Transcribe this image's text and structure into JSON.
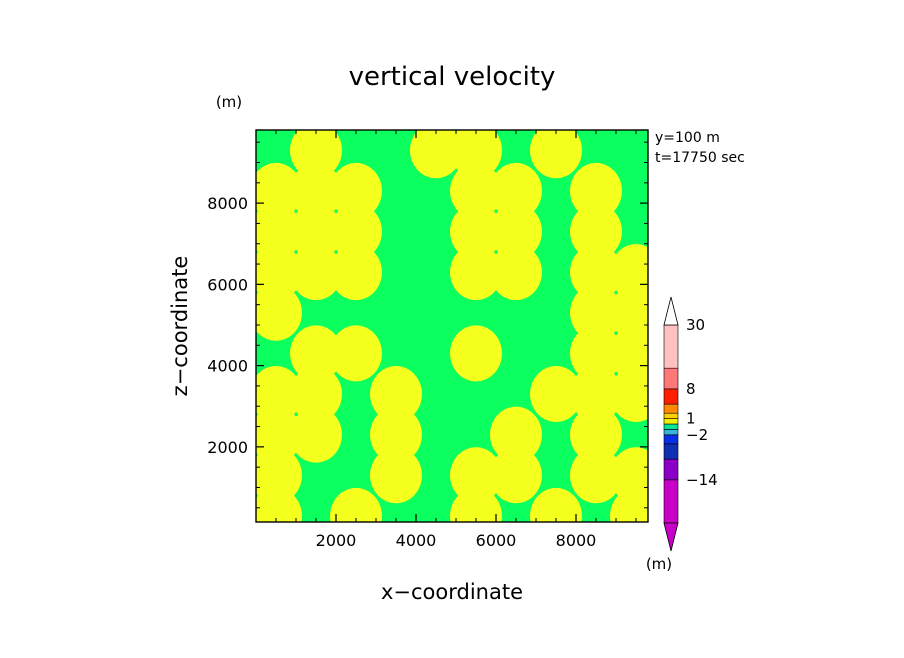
{
  "chart_data": {
    "type": "heatmap",
    "title": "vertical velocity",
    "xlabel": "x−coordinate",
    "ylabel": "z−coordinate",
    "y_unit": "(m)",
    "colorbar_unit": "(m)",
    "info_lines": [
      "y=100 m",
      "t=17750 sec"
    ],
    "xlim": [
      0,
      9800
    ],
    "ylim": [
      150,
      9800
    ],
    "x_ticks": [
      2000,
      4000,
      6000,
      8000
    ],
    "y_ticks": [
      2000,
      4000,
      6000,
      8000
    ],
    "x_tick_labels": [
      "2000",
      "4000",
      "6000",
      "8000"
    ],
    "y_tick_labels": [
      "2000",
      "4000",
      "6000",
      "8000"
    ],
    "colors": {
      "positive": "#f5ff1e",
      "negative": "#0bff5e"
    },
    "colorbar": {
      "levels": [
        -30,
        -14,
        -8,
        -4,
        -2,
        -1,
        0,
        1,
        2,
        4,
        8,
        14,
        30
      ],
      "labels": [
        {
          "value": 30,
          "text": "30"
        },
        {
          "value": 8,
          "text": "8"
        },
        {
          "value": 1,
          "text": "1"
        },
        {
          "value": -2,
          "text": "−2"
        },
        {
          "value": -14,
          "text": "−14"
        }
      ],
      "colors": [
        "#c800c8",
        "#8a00c8",
        "#1030b4",
        "#0a2de6",
        "#38b4dc",
        "#00e696",
        "#f0f000",
        "#ffd000",
        "#ff8a00",
        "#ff1e00",
        "#ff7878",
        "#ffc0c0"
      ]
    },
    "field": {
      "description_rows_bottom_to_top": true,
      "z_levels": [
        300,
        1300,
        2300,
        3300,
        4300,
        5300,
        6300,
        7300,
        8300,
        9300
      ],
      "x_levels": [
        500,
        1500,
        2500,
        3500,
        4500,
        5500,
        6500,
        7500,
        8500,
        9500
      ],
      "sign": [
        [
          1,
          -1,
          1,
          -1,
          -1,
          1,
          -1,
          1,
          -1,
          1
        ],
        [
          1,
          -1,
          -1,
          1,
          -1,
          1,
          1,
          -1,
          1,
          1
        ],
        [
          1,
          1,
          -1,
          1,
          -1,
          -1,
          1,
          -1,
          1,
          -1
        ],
        [
          1,
          1,
          -1,
          1,
          -1,
          -1,
          -1,
          1,
          1,
          1
        ],
        [
          -1,
          1,
          1,
          -1,
          -1,
          1,
          -1,
          -1,
          1,
          1
        ],
        [
          1,
          -1,
          -1,
          -1,
          -1,
          -1,
          -1,
          -1,
          1,
          1
        ],
        [
          1,
          1,
          1,
          -1,
          -1,
          1,
          1,
          -1,
          1,
          1
        ],
        [
          1,
          1,
          1,
          -1,
          -1,
          1,
          1,
          -1,
          1,
          -1
        ],
        [
          1,
          1,
          1,
          -1,
          -1,
          1,
          1,
          -1,
          1,
          -1
        ],
        [
          -1,
          1,
          -1,
          -1,
          1,
          1,
          -1,
          1,
          -1,
          -1
        ]
      ]
    }
  }
}
